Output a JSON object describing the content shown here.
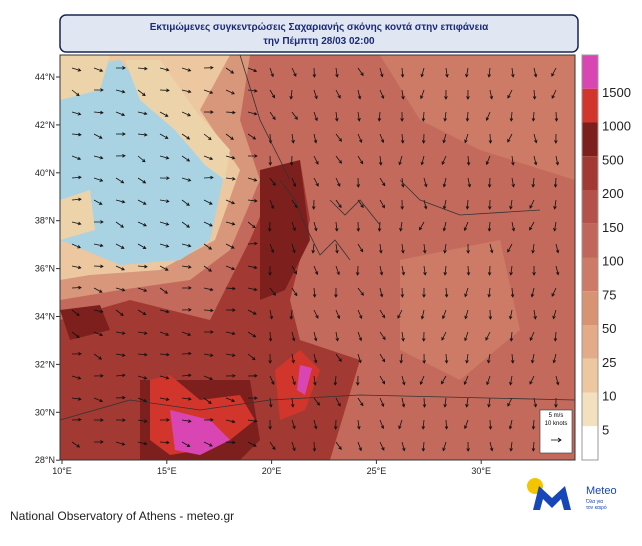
{
  "title": [
    "Εκτιμώμενες συγκεντρώσεις Σαχαριανής σκόνης κοντά στην επιφάνεια",
    "την Πέμπτη 28/03 02:00"
  ],
  "map": {
    "lat_labels": [
      "44°N",
      "42°N",
      "40°N",
      "38°N",
      "36°N",
      "34°N",
      "32°N",
      "30°N",
      "28°N"
    ],
    "lon_labels": [
      "10°E",
      "15°E",
      "20°E",
      "25°E",
      "30°E"
    ]
  },
  "colorbar": {
    "levels": [
      1500,
      1000,
      500,
      200,
      150,
      100,
      75,
      50,
      25,
      10,
      5
    ],
    "colors": [
      "#d946b4",
      "#d2352c",
      "#7d201d",
      "#a23a33",
      "#b4514a",
      "#c1665a",
      "#cd7b66",
      "#d89373",
      "#e3ab88",
      "#ecc79f",
      "#f3e0bf",
      "#ffffff"
    ]
  },
  "wind_key": {
    "speed": "5 m/s",
    "knots": "10 knots"
  },
  "footer": "National Observatory of Athens - meteo.gr",
  "logo": {
    "name": "Meteo",
    "tagline": [
      "Όλα για",
      "τον καιρό"
    ]
  }
}
